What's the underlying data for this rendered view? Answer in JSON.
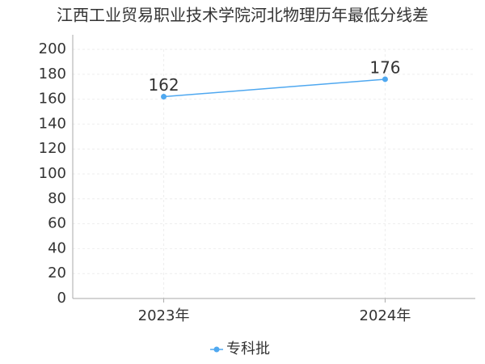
{
  "chart_data": {
    "type": "line",
    "title": "江西工业贸易职业技术学院河北物理历年最低分线差",
    "categories": [
      "2023年",
      "2024年"
    ],
    "series": [
      {
        "name": "专科批",
        "color": "#4fa8f0",
        "values": [
          162,
          176
        ]
      }
    ],
    "ylim": [
      0,
      200
    ],
    "yticks": [
      0,
      20,
      40,
      60,
      80,
      100,
      120,
      140,
      160,
      180,
      200
    ],
    "grid": true
  }
}
